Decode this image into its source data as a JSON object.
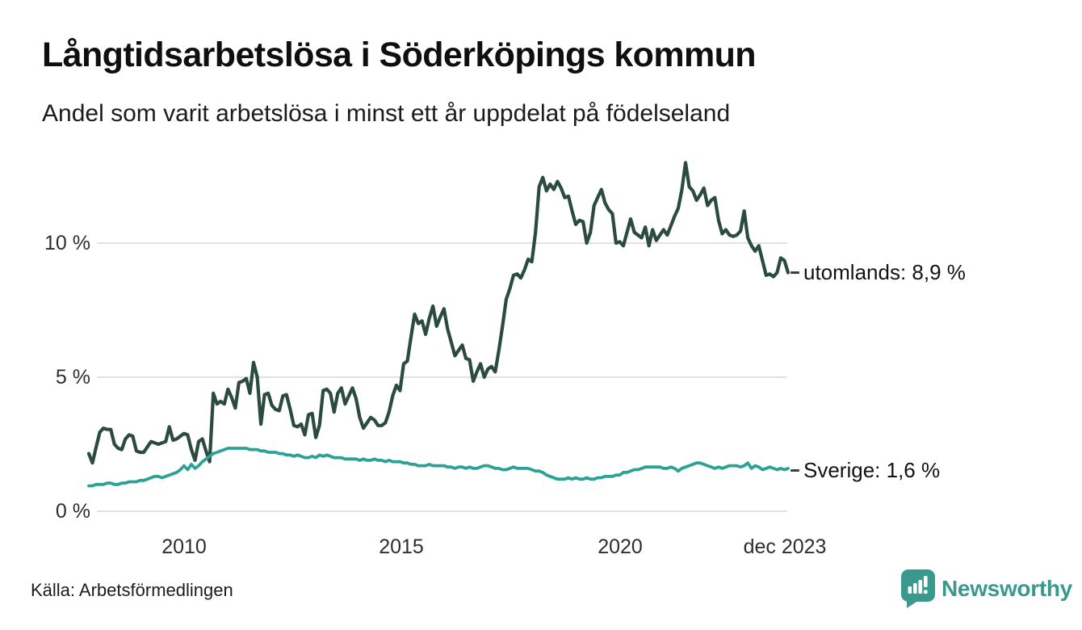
{
  "page": {
    "source": "Källa: Arbetsförmedlingen",
    "brand": "Newsworthy",
    "brand_color": "#38998c",
    "background": "#ffffff"
  },
  "chart_data": {
    "type": "line",
    "title": "Långtidsarbetslösa i Söderköpings kommun",
    "subtitle": "Andel som varit arbetslösa i minst ett år uppdelat på födelseland",
    "grid": "horizontal",
    "grid_color": "#e2e2e2",
    "ylim": [
      0,
      13.5
    ],
    "yticks": [
      {
        "label": "0 %",
        "value": 0
      },
      {
        "label": "5 %",
        "value": 5
      },
      {
        "label": "10 %",
        "value": 10
      }
    ],
    "xticks": [
      {
        "label": "2010",
        "pos": 0.136
      },
      {
        "label": "2015",
        "pos": 0.447
      },
      {
        "label": "2020",
        "pos": 0.76
      },
      {
        "label": "dec 2023",
        "pos": 0.996
      }
    ],
    "x_unit": "månad",
    "x_end": "dec 2023",
    "series": [
      {
        "name": "utomlands",
        "label": "utomlands: 8,9 %",
        "last_value": "8,9 %",
        "color": "#2a4a42",
        "width": 4.2,
        "values": [
          2.15,
          1.8,
          2.4,
          2.95,
          3.1,
          3.05,
          3.05,
          2.5,
          2.35,
          2.3,
          2.7,
          2.85,
          2.8,
          2.25,
          2.2,
          2.2,
          2.4,
          2.6,
          2.55,
          2.5,
          2.55,
          2.6,
          3.15,
          2.65,
          2.7,
          2.8,
          2.9,
          2.85,
          2.3,
          1.9,
          2.6,
          2.7,
          2.25,
          1.85,
          4.4,
          4.0,
          4.1,
          4.0,
          4.55,
          4.25,
          3.85,
          4.8,
          4.85,
          4.95,
          4.4,
          5.55,
          5.0,
          3.25,
          4.35,
          4.4,
          3.95,
          3.8,
          3.75,
          4.3,
          4.35,
          3.8,
          3.2,
          3.15,
          3.25,
          2.85,
          3.6,
          3.65,
          2.75,
          3.2,
          4.5,
          4.55,
          4.4,
          3.7,
          4.4,
          4.6,
          4.0,
          4.3,
          4.6,
          4.2,
          3.5,
          3.1,
          3.3,
          3.5,
          3.4,
          3.2,
          3.2,
          3.3,
          3.7,
          4.3,
          4.7,
          4.5,
          5.5,
          5.6,
          6.5,
          7.35,
          7.0,
          7.1,
          6.6,
          7.2,
          7.65,
          6.9,
          7.25,
          7.55,
          6.8,
          6.3,
          5.8,
          6.0,
          6.2,
          5.7,
          5.65,
          4.85,
          5.2,
          5.5,
          5.0,
          5.3,
          5.4,
          5.2,
          6.0,
          6.9,
          7.9,
          8.3,
          8.8,
          8.85,
          8.7,
          9.0,
          9.4,
          9.3,
          10.4,
          12.1,
          12.45,
          11.95,
          12.2,
          12.0,
          12.3,
          12.05,
          11.7,
          11.75,
          11.2,
          10.7,
          10.85,
          10.8,
          10.0,
          10.4,
          11.4,
          11.7,
          12.0,
          11.5,
          11.25,
          11.1,
          10.0,
          10.05,
          9.9,
          10.4,
          10.9,
          10.4,
          10.3,
          10.2,
          10.6,
          9.9,
          10.5,
          10.1,
          10.3,
          10.5,
          10.3,
          10.65,
          11.0,
          11.3,
          12.0,
          13.0,
          12.1,
          11.95,
          11.6,
          11.8,
          12.05,
          11.4,
          11.6,
          11.7,
          10.85,
          10.35,
          10.5,
          10.3,
          10.25,
          10.3,
          10.45,
          11.2,
          10.2,
          9.9,
          9.7,
          9.9,
          9.35,
          8.8,
          8.85,
          8.75,
          8.9,
          9.45,
          9.35,
          8.9
        ]
      },
      {
        "name": "Sverige",
        "label": "Sverige: 1,6 %",
        "last_value": "1,6 %",
        "color": "#2ba394",
        "width": 3.8,
        "values": [
          0.95,
          0.95,
          1.0,
          1.0,
          1.0,
          1.05,
          1.05,
          1.0,
          1.0,
          1.05,
          1.05,
          1.1,
          1.1,
          1.1,
          1.15,
          1.15,
          1.2,
          1.25,
          1.3,
          1.3,
          1.25,
          1.3,
          1.35,
          1.4,
          1.45,
          1.55,
          1.7,
          1.55,
          1.75,
          1.6,
          1.7,
          1.85,
          1.95,
          2.05,
          2.15,
          2.2,
          2.25,
          2.3,
          2.35,
          2.35,
          2.35,
          2.35,
          2.35,
          2.35,
          2.3,
          2.3,
          2.3,
          2.25,
          2.25,
          2.2,
          2.2,
          2.2,
          2.15,
          2.15,
          2.1,
          2.1,
          2.05,
          2.1,
          2.05,
          2.0,
          2.0,
          2.05,
          2.0,
          2.1,
          2.05,
          2.1,
          2.05,
          2.0,
          2.0,
          2.0,
          1.95,
          1.95,
          1.95,
          1.95,
          1.9,
          1.95,
          1.9,
          1.9,
          1.95,
          1.9,
          1.9,
          1.85,
          1.9,
          1.85,
          1.85,
          1.85,
          1.8,
          1.8,
          1.75,
          1.75,
          1.7,
          1.7,
          1.7,
          1.75,
          1.7,
          1.7,
          1.7,
          1.7,
          1.65,
          1.65,
          1.6,
          1.65,
          1.65,
          1.6,
          1.65,
          1.6,
          1.6,
          1.65,
          1.7,
          1.7,
          1.65,
          1.6,
          1.6,
          1.55,
          1.55,
          1.6,
          1.65,
          1.6,
          1.6,
          1.6,
          1.6,
          1.55,
          1.5,
          1.5,
          1.45,
          1.35,
          1.3,
          1.25,
          1.2,
          1.2,
          1.2,
          1.25,
          1.2,
          1.25,
          1.2,
          1.2,
          1.25,
          1.2,
          1.2,
          1.25,
          1.25,
          1.3,
          1.3,
          1.3,
          1.35,
          1.35,
          1.45,
          1.45,
          1.5,
          1.55,
          1.55,
          1.6,
          1.65,
          1.65,
          1.65,
          1.65,
          1.65,
          1.6,
          1.6,
          1.65,
          1.6,
          1.5,
          1.6,
          1.65,
          1.7,
          1.75,
          1.8,
          1.8,
          1.75,
          1.7,
          1.65,
          1.6,
          1.65,
          1.6,
          1.65,
          1.7,
          1.7,
          1.7,
          1.65,
          1.7,
          1.8,
          1.6,
          1.7,
          1.65,
          1.55,
          1.6,
          1.65,
          1.6,
          1.55,
          1.6,
          1.55,
          1.6
        ]
      }
    ]
  }
}
